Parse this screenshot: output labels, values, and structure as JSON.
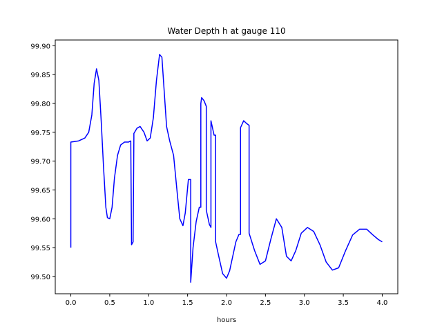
{
  "chart_data": {
    "type": "line",
    "title": "Water Depth h at gauge 110",
    "xlabel": "hours",
    "ylabel": "",
    "xlim": [
      -0.2,
      4.2
    ],
    "ylim": [
      99.47,
      99.91
    ],
    "xticks": [
      0.0,
      0.5,
      1.0,
      1.5,
      2.0,
      2.5,
      3.0,
      3.5,
      4.0
    ],
    "xtick_labels": [
      "0.0",
      "0.5",
      "1.0",
      "1.5",
      "2.0",
      "2.5",
      "3.0",
      "3.5",
      "4.0"
    ],
    "yticks": [
      99.5,
      99.55,
      99.6,
      99.65,
      99.7,
      99.75,
      99.8,
      99.85,
      99.9
    ],
    "ytick_labels": [
      "99.50",
      "99.55",
      "99.60",
      "99.65",
      "99.70",
      "99.75",
      "99.80",
      "99.85",
      "99.90"
    ],
    "grid": false,
    "color": "#0000ff",
    "series": [
      {
        "x": [
          0.0,
          0.0,
          0.1,
          0.18,
          0.23,
          0.27,
          0.3,
          0.33,
          0.36,
          0.39,
          0.42,
          0.45,
          0.47,
          0.5,
          0.53,
          0.56,
          0.6,
          0.64,
          0.69,
          0.74,
          0.77,
          0.78,
          0.8,
          0.8,
          0.81,
          0.81,
          0.85,
          0.89,
          0.94,
          0.98,
          1.02,
          1.06,
          1.1,
          1.14,
          1.17,
          1.2,
          1.23,
          1.27,
          1.32,
          1.37,
          1.4,
          1.44,
          1.47,
          1.51,
          1.54,
          1.54,
          1.57,
          1.61,
          1.65,
          1.67,
          1.67,
          1.68,
          1.71,
          1.74,
          1.74,
          1.78,
          1.8,
          1.8,
          1.84,
          1.86,
          1.86,
          1.9,
          1.95,
          2.0,
          2.04,
          2.08,
          2.12,
          2.16,
          2.18,
          2.18,
          2.22,
          2.26,
          2.29,
          2.29,
          2.36,
          2.43,
          2.5,
          2.57,
          2.64,
          2.71,
          2.77,
          2.83,
          2.89,
          2.96,
          3.04,
          3.12,
          3.2,
          3.28,
          3.36,
          3.44,
          3.53,
          3.62,
          3.71,
          3.8,
          3.88,
          3.95,
          4.0
        ],
        "y": [
          99.55,
          99.733,
          99.735,
          99.74,
          99.75,
          99.78,
          99.835,
          99.86,
          99.84,
          99.77,
          99.69,
          99.62,
          99.602,
          99.6,
          99.62,
          99.67,
          99.71,
          99.728,
          99.733,
          99.733,
          99.735,
          99.555,
          99.56,
          99.565,
          99.74,
          99.748,
          99.757,
          99.76,
          99.75,
          99.735,
          99.74,
          99.775,
          99.84,
          99.885,
          99.88,
          99.82,
          99.76,
          99.735,
          99.71,
          99.64,
          99.6,
          99.588,
          99.61,
          99.668,
          99.668,
          99.49,
          99.55,
          99.595,
          99.62,
          99.62,
          99.8,
          99.81,
          99.805,
          99.795,
          99.615,
          99.59,
          99.585,
          99.77,
          99.745,
          99.745,
          99.56,
          99.535,
          99.505,
          99.497,
          99.51,
          99.535,
          99.56,
          99.573,
          99.573,
          99.758,
          99.77,
          99.765,
          99.762,
          99.575,
          99.545,
          99.521,
          99.527,
          99.565,
          99.6,
          99.585,
          99.535,
          99.527,
          99.545,
          99.575,
          99.585,
          99.578,
          99.555,
          99.525,
          99.511,
          99.515,
          99.545,
          99.572,
          99.582,
          99.582,
          99.572,
          99.564,
          99.56
        ]
      }
    ]
  }
}
